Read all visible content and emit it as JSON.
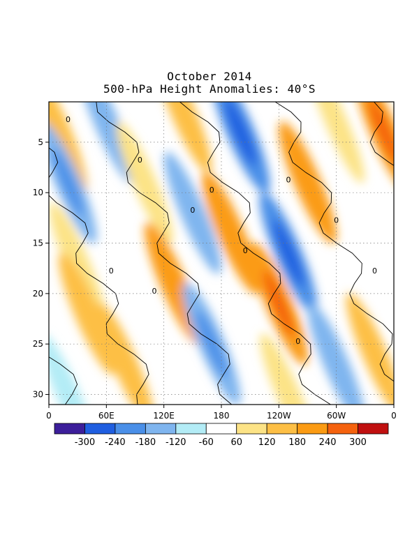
{
  "chart_data": {
    "type": "heatmap",
    "title": "October 2014",
    "subtitle": "500-hPa Height Anomalies: 40°S",
    "xlabel": "",
    "ylabel": "",
    "x_ticks": [
      "0",
      "60E",
      "120E",
      "180",
      "120W",
      "60W",
      "0"
    ],
    "x_tick_positions_deg": [
      0,
      60,
      120,
      180,
      240,
      300,
      360
    ],
    "xlim": [
      0,
      360
    ],
    "y_ticks": [
      5,
      10,
      15,
      20,
      25,
      30
    ],
    "ylim": [
      1,
      31
    ],
    "y_inverted": true,
    "grid": true,
    "contour_label": "0",
    "colorbar": {
      "labels": [
        "-300",
        "-240",
        "-180",
        "-120",
        "-60",
        "60",
        "120",
        "180",
        "240",
        "300"
      ],
      "colors": [
        "#3c1e9a",
        "#1f5ee0",
        "#4a8fe8",
        "#7fb5ef",
        "#b3ecf6",
        "#ffffff",
        "#fce386",
        "#fdbf45",
        "#fb9b13",
        "#f5620e",
        "#c01010"
      ]
    },
    "anomaly_bands": [
      {
        "lon": 10,
        "day": 4,
        "value": 150
      },
      {
        "lon": 60,
        "day": 3,
        "value": -140
      },
      {
        "lon": 140,
        "day": 2,
        "value": 140
      },
      {
        "lon": 200,
        "day": 4,
        "value": -240
      },
      {
        "lon": 300,
        "day": 3,
        "value": 60
      },
      {
        "lon": 350,
        "day": 4,
        "value": 230
      },
      {
        "lon": 20,
        "day": 9,
        "value": -170
      },
      {
        "lon": 100,
        "day": 9,
        "value": 90
      },
      {
        "lon": 270,
        "day": 9,
        "value": 190
      },
      {
        "lon": 150,
        "day": 12,
        "value": -130
      },
      {
        "lon": 190,
        "day": 14,
        "value": 190
      },
      {
        "lon": 250,
        "day": 16,
        "value": -200
      },
      {
        "lon": 30,
        "day": 17,
        "value": 110
      },
      {
        "lon": 130,
        "day": 19,
        "value": 180
      },
      {
        "lon": 40,
        "day": 22,
        "value": 150
      },
      {
        "lon": 240,
        "day": 21,
        "value": 200
      },
      {
        "lon": 170,
        "day": 25,
        "value": -180
      },
      {
        "lon": 80,
        "day": 27,
        "value": 140
      },
      {
        "lon": 300,
        "day": 27,
        "value": -150
      },
      {
        "lon": 340,
        "day": 26,
        "value": 130
      },
      {
        "lon": 20,
        "day": 30,
        "value": -100
      },
      {
        "lon": 250,
        "day": 30,
        "value": 110
      }
    ]
  }
}
